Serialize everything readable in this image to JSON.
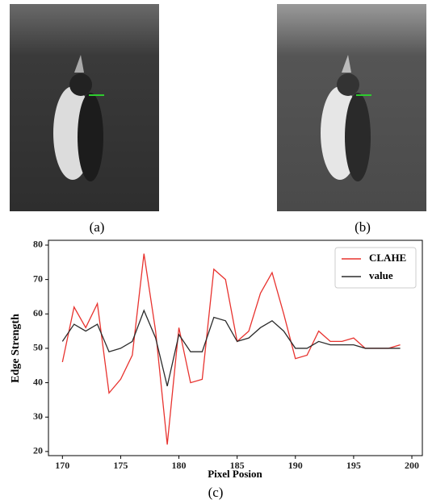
{
  "captions": [
    "(a)",
    "(b)"
  ],
  "chart_data": {
    "type": "line",
    "caption": "(c)",
    "xlabel": "Pixel Posion",
    "ylabel": "Edge Strength",
    "x": [
      170,
      171,
      172,
      173,
      174,
      175,
      176,
      177,
      178,
      179,
      180,
      181,
      182,
      183,
      184,
      185,
      186,
      187,
      188,
      189,
      190,
      191,
      192,
      193,
      194,
      195,
      196,
      197,
      198,
      199
    ],
    "series": [
      {
        "name": "CLAHE",
        "color": "#e8332f",
        "values": [
          46,
          62,
          56,
          63,
          37,
          41,
          48,
          77.5,
          55,
          22,
          56,
          40,
          41,
          73,
          70,
          52,
          55,
          66,
          72,
          60,
          47,
          48,
          55,
          52,
          52,
          53,
          50,
          50,
          50,
          51
        ]
      },
      {
        "name": "value",
        "color": "#2b2b2b",
        "values": [
          52,
          57,
          55,
          57,
          49,
          50,
          52,
          61,
          53,
          39,
          54,
          49,
          49,
          59,
          58,
          52,
          53,
          56,
          58,
          55,
          50,
          50,
          52,
          51,
          51,
          51,
          50,
          50,
          50,
          50
        ]
      }
    ],
    "xlim": [
      168.8,
      200.9
    ],
    "xticks": [
      170,
      175,
      180,
      185,
      190,
      195,
      200
    ],
    "ylim": [
      18.8,
      81.4
    ],
    "yticks": [
      20,
      30,
      40,
      50,
      60,
      70,
      80
    ],
    "legend": "upper right"
  }
}
